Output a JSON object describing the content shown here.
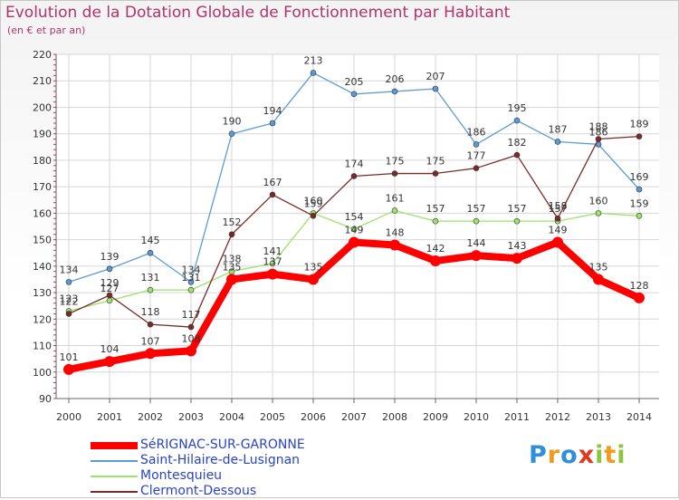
{
  "title": "Evolution de la Dotation Globale de Fonctionnement par Habitant",
  "subtitle": "(en € et par an)",
  "brand": {
    "text": [
      "P",
      "r",
      "o",
      "x",
      "i",
      "t",
      "i"
    ],
    "colors": [
      "#2f8fd8",
      "#f39a1e",
      "#2f8fd8",
      "#e03a1e",
      "#8cc63f",
      "#f39a1e",
      "#8cc63f"
    ]
  },
  "chart_data": {
    "type": "line",
    "title": "Evolution de la Dotation Globale de Fonctionnement par Habitant",
    "subtitle": "(en € et par an)",
    "xlabel": "",
    "ylabel": "",
    "ylim": [
      90,
      220
    ],
    "yticks": [
      90,
      100,
      110,
      120,
      130,
      140,
      150,
      160,
      170,
      180,
      190,
      200,
      210,
      220
    ],
    "grid": true,
    "legend_position": "bottom-left",
    "categories": [
      "2000",
      "2001",
      "2002",
      "2003",
      "2004",
      "2005",
      "2006",
      "2007",
      "2008",
      "2009",
      "2010",
      "2011",
      "2012",
      "2013",
      "2014"
    ],
    "series": [
      {
        "name": "SéRIGNAC-SUR-GARONNE",
        "color": "#ff0000",
        "values": [
          101,
          104,
          107,
          108,
          135,
          137,
          135,
          149,
          148,
          142,
          144,
          143,
          149,
          135,
          128
        ],
        "labels": [
          "101",
          "104",
          "107",
          "108",
          "135",
          "137",
          "135",
          "149",
          "148",
          "142",
          "144",
          "143",
          "149",
          "135",
          "128"
        ]
      },
      {
        "name": "Saint-Hilaire-de-Lusignan",
        "color": "#5b9bd5",
        "values": [
          134,
          139,
          145,
          134,
          190,
          194,
          213,
          205,
          206,
          207,
          186,
          195,
          187,
          186,
          169
        ],
        "labels": [
          "134",
          "139",
          "145",
          "134",
          "190",
          "194",
          "213",
          "205",
          "206",
          "207",
          "186",
          "195",
          "187",
          "186",
          "169"
        ]
      },
      {
        "name": "Montesquieu",
        "color": "#9be36b",
        "values": [
          123,
          127,
          131,
          131,
          138,
          141,
          160,
          154,
          161,
          157,
          157,
          157,
          157,
          160,
          159
        ],
        "labels": [
          "123",
          "127",
          "131",
          "131",
          "138",
          "141",
          "160",
          "154",
          "161",
          "157",
          "157",
          "157",
          "157",
          "160",
          "159"
        ]
      },
      {
        "name": "Clermont-Dessous",
        "color": "#7a2a2a",
        "values": [
          122,
          129,
          118,
          117,
          152,
          167,
          159,
          174,
          175,
          175,
          177,
          182,
          158,
          188,
          189
        ],
        "labels": [
          "122",
          "129",
          "118",
          "117",
          "152",
          "167",
          "159",
          "174",
          "175",
          "175",
          "177",
          "182",
          "158",
          "188",
          "189"
        ]
      }
    ]
  }
}
